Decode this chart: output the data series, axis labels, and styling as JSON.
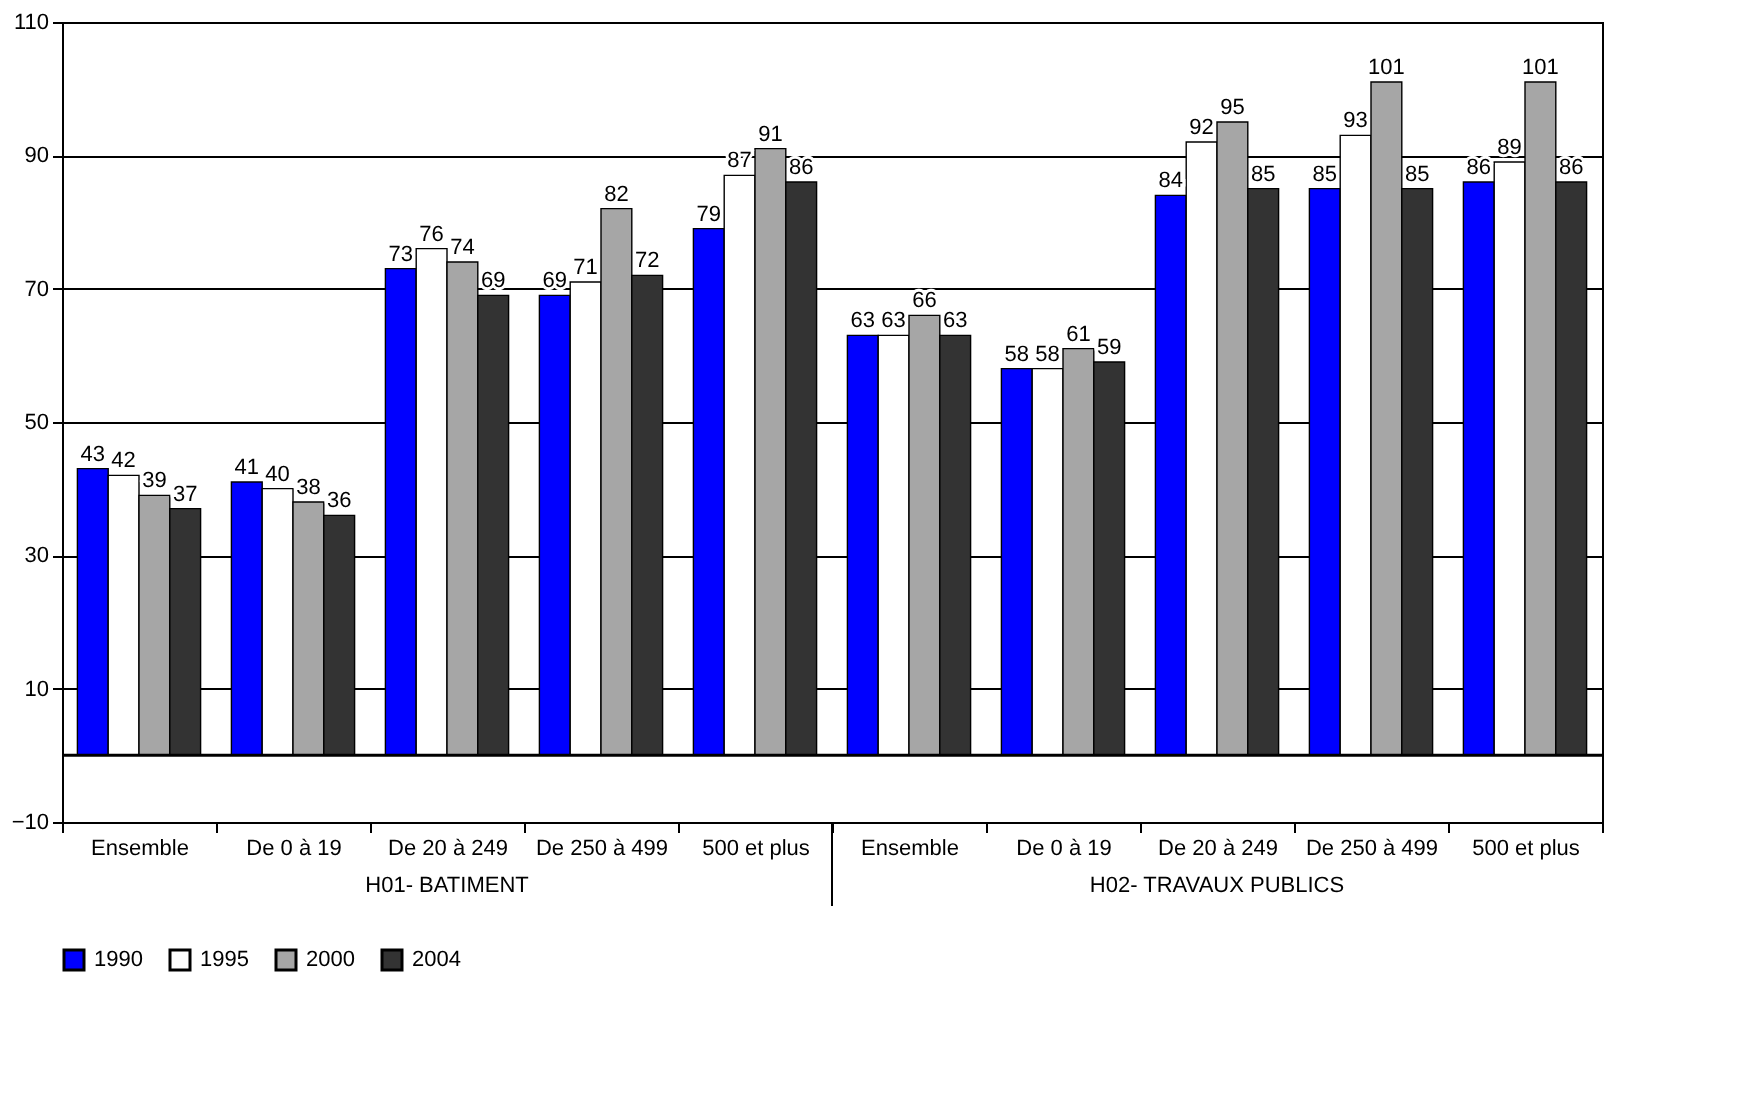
{
  "chart_data": {
    "type": "bar",
    "categories": [
      "Ensemble",
      "De  0 à 19",
      "De 20 à 249",
      "De 250 à 499",
      "500 et plus",
      "Ensemble",
      "De  0 à 19",
      "De 20 à 249",
      "De 250 à 499",
      "500 et plus"
    ],
    "series": [
      {
        "name": "1990",
        "color": "#0000ff",
        "values": [
          43,
          41,
          73,
          69,
          79,
          63,
          58,
          84,
          85,
          86
        ]
      },
      {
        "name": "1995",
        "color": "#ffffff",
        "values": [
          42,
          40,
          76,
          71,
          87,
          63,
          58,
          92,
          93,
          89
        ]
      },
      {
        "name": "2000",
        "color": "#a6a6a6",
        "values": [
          39,
          38,
          74,
          82,
          91,
          66,
          61,
          95,
          101,
          101
        ]
      },
      {
        "name": "2004",
        "color": "#333333",
        "values": [
          37,
          36,
          69,
          72,
          86,
          63,
          59,
          85,
          85,
          86
        ]
      }
    ],
    "annotations": [
      "H01- BATIMENT",
      "H02- TRAVAUX PUBLICS"
    ],
    "ylim": [
      -10,
      110
    ],
    "yticks": [
      -10,
      10,
      30,
      50,
      70,
      90,
      110
    ],
    "ref_lines": [
      {
        "axis": "y",
        "value": 0,
        "label": null
      }
    ],
    "grid": "y",
    "legend": "bottom",
    "data_labels": true
  }
}
